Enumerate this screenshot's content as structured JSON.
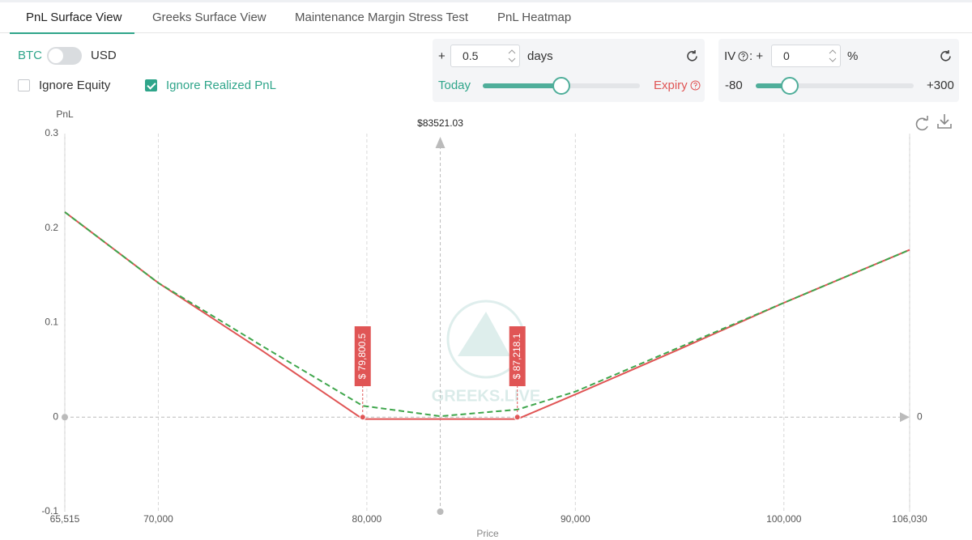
{
  "tabs": [
    "PnL Surface View",
    "Greeks Surface View",
    "Maintenance Margin Stress Test",
    "PnL Heatmap"
  ],
  "currency": {
    "left": "BTC",
    "right": "USD"
  },
  "checkboxes": [
    {
      "label": "Ignore Equity",
      "checked": false
    },
    {
      "label": "Ignore Realized PnL",
      "checked": true
    }
  ],
  "time_panel": {
    "prefix": "+",
    "value": "0.5",
    "unit": "days",
    "start": "Today",
    "end": "Expiry"
  },
  "iv_panel": {
    "label": "IV",
    "prefix": ": +",
    "value": "0",
    "unit": "%",
    "min": "-80",
    "max": "+300"
  },
  "watermark": "GREEKS.LIVE",
  "chart_data": {
    "type": "line",
    "y_label": "PnL",
    "x_label": "Price",
    "xlim": [
      65515,
      106030
    ],
    "ylim": [
      -0.1,
      0.3
    ],
    "yticks": [
      -0.1,
      0,
      0.1,
      0.2,
      0.3
    ],
    "xticks": [
      {
        "value": 65515,
        "label": "65,515"
      },
      {
        "value": 70000,
        "label": "70,000"
      },
      {
        "value": 80000,
        "label": "80,000"
      },
      {
        "value": 90000,
        "label": "90,000"
      },
      {
        "value": 100000,
        "label": "100,000"
      },
      {
        "value": 106030,
        "label": "106,030"
      }
    ],
    "grid": true,
    "x": [
      65515,
      70000,
      75000,
      79800.5,
      83521.03,
      87218.1,
      90000,
      95000,
      100000,
      106030
    ],
    "series": [
      {
        "color": "#e05555",
        "dashed": false,
        "values": [
          0.217,
          0.142,
          0.07,
          -0.002,
          -0.002,
          -0.002,
          0.024,
          0.072,
          0.121,
          0.177
        ]
      },
      {
        "color": "#3fa64c",
        "dashed": true,
        "values": [
          0.217,
          0.142,
          0.075,
          0.012,
          0.001,
          0.008,
          0.027,
          0.074,
          0.121,
          0.177
        ]
      }
    ],
    "current_price": {
      "value": 83521.03,
      "label": "$83521.03"
    },
    "breakevens": [
      {
        "value": 79800.5,
        "label": "$ 79,800.5"
      },
      {
        "value": 87218.1,
        "label": "$ 87,218.1"
      }
    ],
    "zero_label": "0"
  }
}
